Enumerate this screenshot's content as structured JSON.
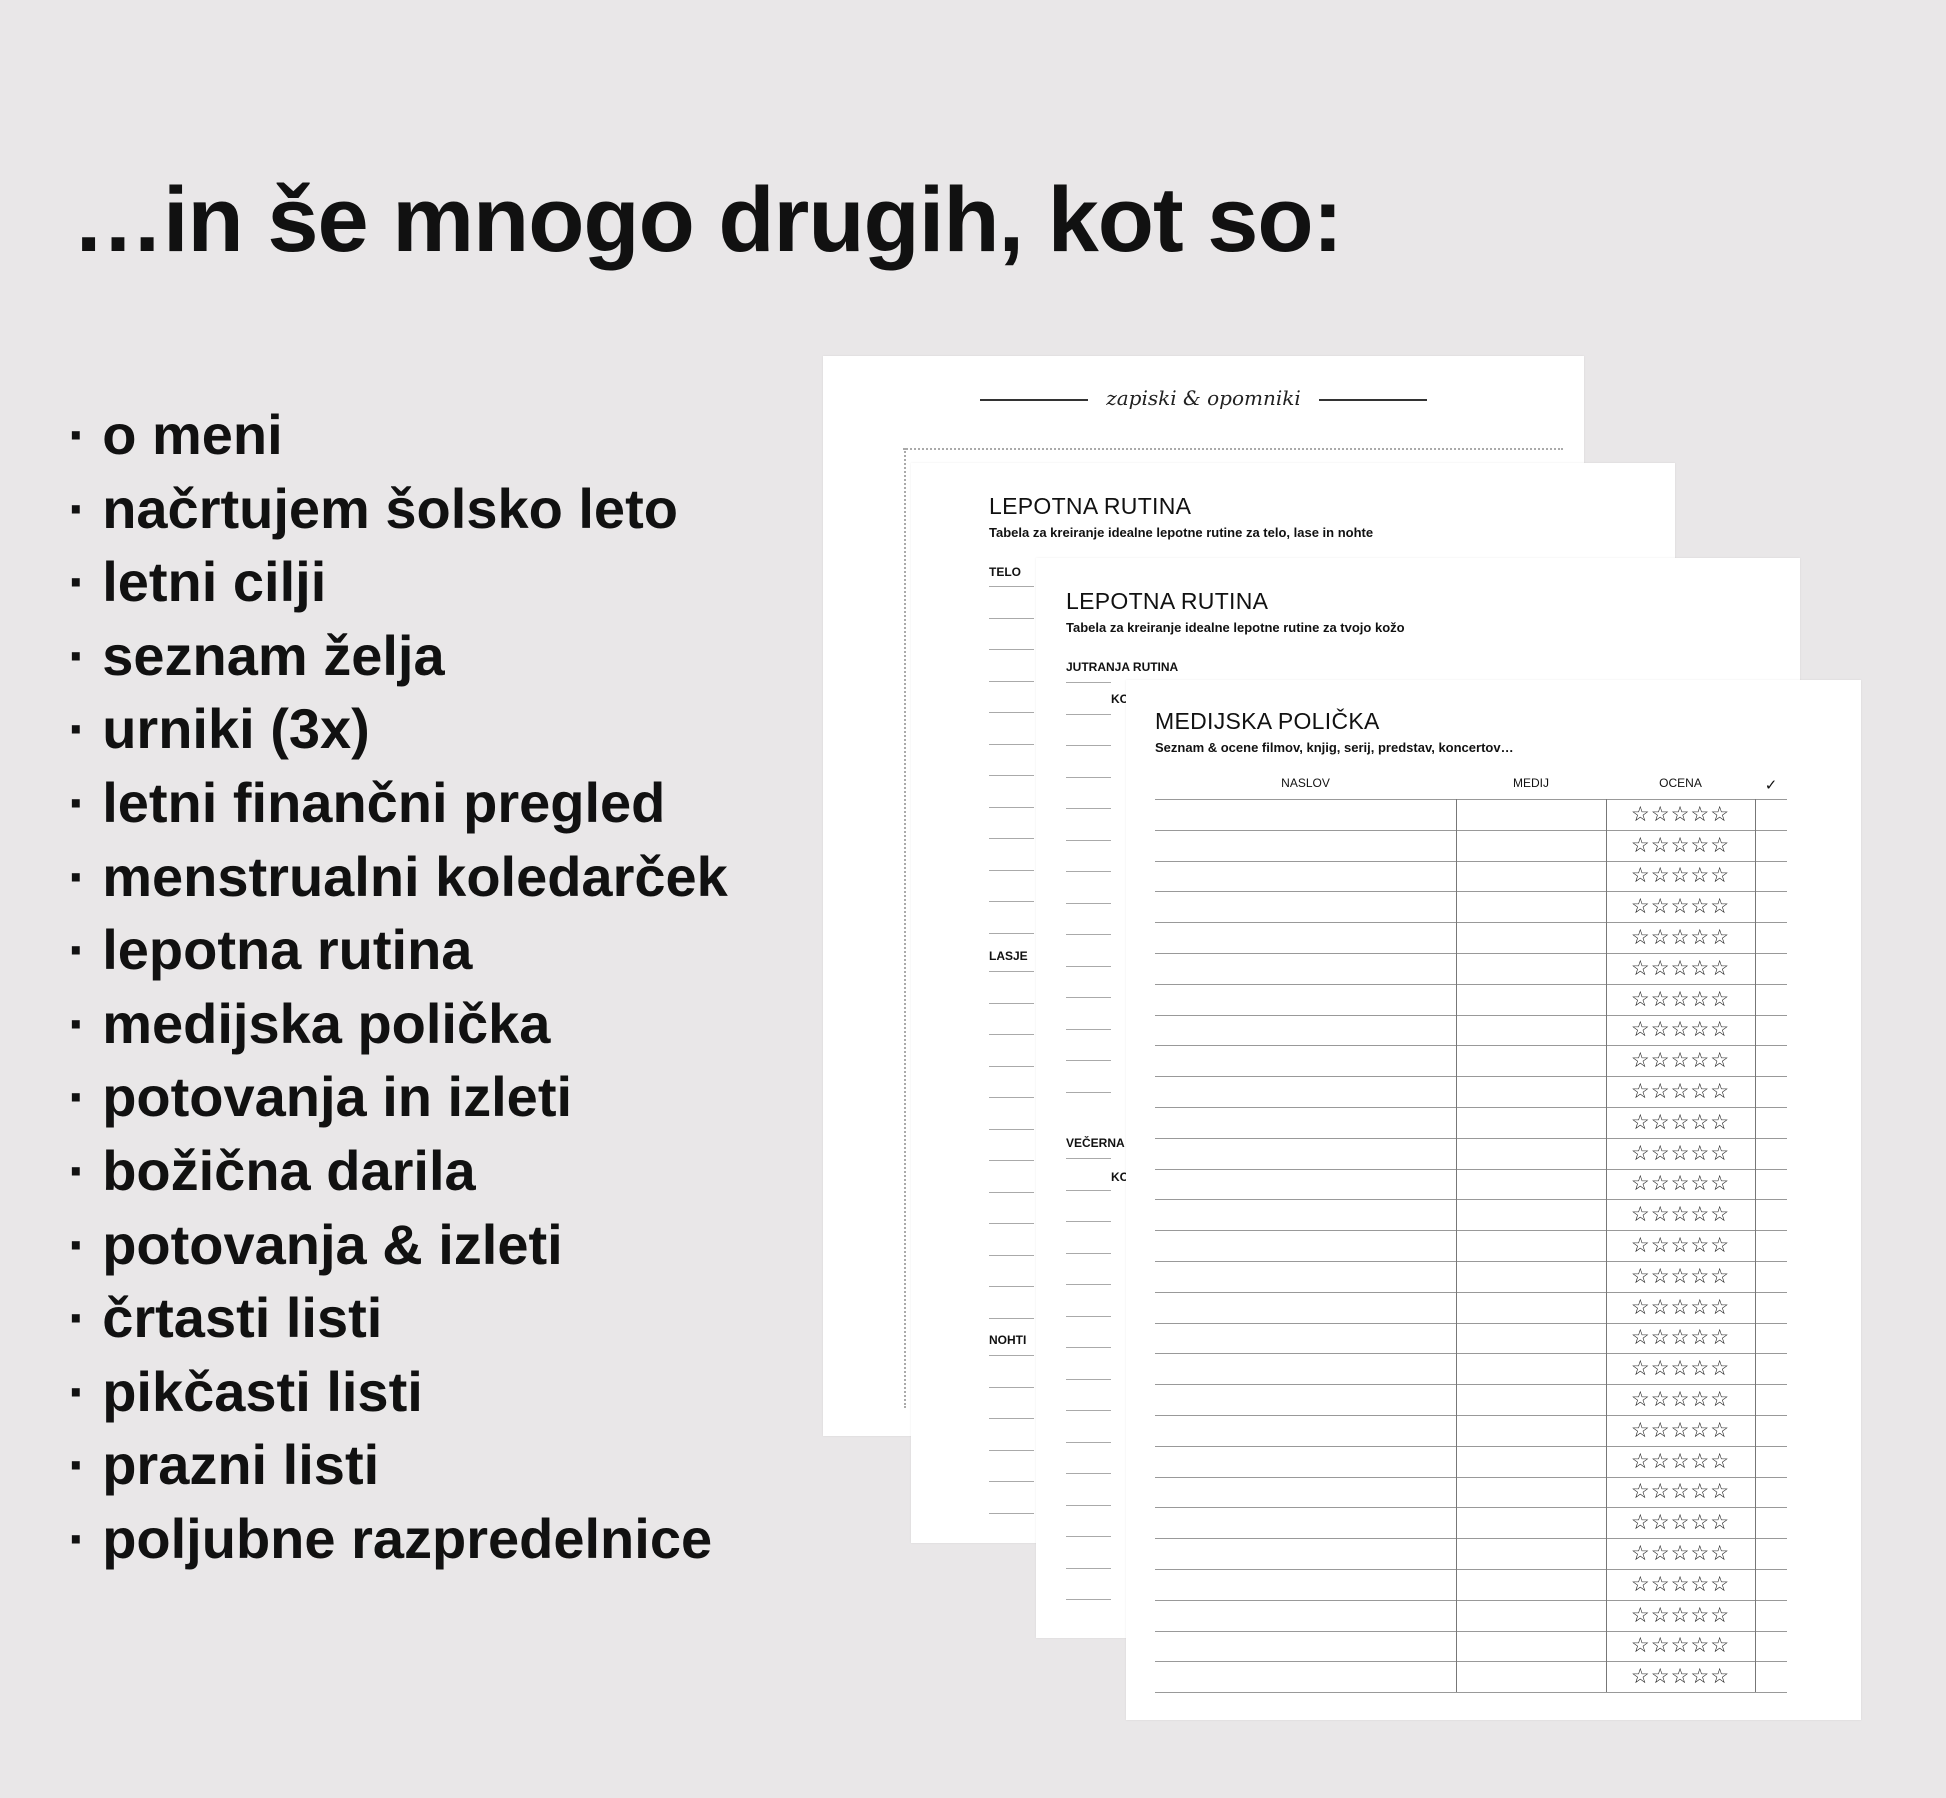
{
  "headline": "…in še mnogo drugih, kot so:",
  "items": [
    "· o meni",
    "· načrtujem šolsko leto",
    "· letni cilji",
    "· seznam želja",
    "· urniki (3x)",
    "· letni finančni pregled",
    "· menstrualni koledarček",
    "· lepotna rutina",
    "· medijska polička",
    "· potovanja in izleti",
    "· božična darila",
    "· potovanja & izleti",
    "· črtasti listi",
    "· pikčasti listi",
    "· prazni listi",
    "· poljubne razpredelnice"
  ],
  "pages": {
    "notes": {
      "header": "zapiski & opomniki"
    },
    "beauty_body": {
      "title": "LEPOTNA RUTINA",
      "subtitle": "Tabela za kreiranje idealne lepotne rutine za telo, lase in nohte",
      "sections": [
        "TELO",
        "LASJE",
        "NOHTI"
      ]
    },
    "beauty_skin": {
      "title": "LEPOTNA RUTINA",
      "subtitle": "Tabela za kreiranje idealne lepotne rutine za tvojo kožo",
      "sections": [
        "JUTRANJA RUTINA",
        "VEČERNA"
      ],
      "partial_label": "KO"
    },
    "media": {
      "title": "MEDIJSKA POLIČKA",
      "subtitle": "Seznam & ocene filmov, knjig, serij, predstav, koncertov…",
      "columns": [
        "NASLOV",
        "MEDIJ",
        "OCENA",
        "✓"
      ],
      "rating_stars": "☆☆☆☆☆",
      "rating_value": 0
    }
  }
}
